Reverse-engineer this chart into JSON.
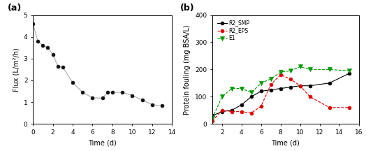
{
  "panel_a": {
    "label": "(a)",
    "x": [
      0,
      0.5,
      1,
      1.5,
      2,
      2.5,
      3,
      4,
      5,
      6,
      7,
      7.5,
      8,
      9,
      10,
      11,
      12,
      13
    ],
    "y": [
      4.6,
      3.8,
      3.6,
      3.5,
      3.2,
      2.65,
      2.6,
      1.9,
      1.45,
      1.2,
      1.18,
      1.45,
      1.45,
      1.45,
      1.3,
      1.1,
      0.88,
      0.83
    ],
    "xlabel": "Time (d)",
    "ylabel": "Flux (L/m²/h)",
    "xlim": [
      0,
      14
    ],
    "ylim": [
      0,
      5
    ],
    "xticks": [
      0,
      2,
      4,
      6,
      8,
      10,
      12,
      14
    ],
    "yticks": [
      0,
      1,
      2,
      3,
      4,
      5
    ],
    "line_color": "#aaaaaa",
    "marker_color": "#111111"
  },
  "panel_b": {
    "label": "(b)",
    "xlabel": "Time (d)",
    "ylabel": "Protein fouling (mg BSA/L)",
    "xlim": [
      1,
      16
    ],
    "ylim": [
      0,
      400
    ],
    "xticks": [
      2,
      4,
      6,
      8,
      10,
      12,
      14,
      16
    ],
    "yticks": [
      0,
      100,
      200,
      300,
      400
    ],
    "series": [
      {
        "name": "R2_SMP",
        "x": [
          1,
          2,
          3,
          4,
          5,
          6,
          7,
          8,
          9,
          10,
          11,
          13,
          15
        ],
        "y": [
          30,
          45,
          50,
          70,
          100,
          120,
          125,
          130,
          135,
          140,
          140,
          150,
          185
        ],
        "color": "#000000",
        "marker": "o",
        "linestyle": "-",
        "linewidth": 0.8
      },
      {
        "name": "R2_EPS",
        "x": [
          1,
          2,
          3,
          4,
          5,
          6,
          7,
          8,
          9,
          10,
          11,
          13,
          15
        ],
        "y": [
          10,
          50,
          45,
          45,
          40,
          65,
          145,
          180,
          165,
          140,
          100,
          60,
          60
        ],
        "color": "#dd0000",
        "marker": "o",
        "linestyle": "--",
        "linewidth": 0.8
      },
      {
        "name": "E1",
        "x": [
          1,
          2,
          3,
          4,
          5,
          6,
          7,
          8,
          9,
          10,
          11,
          13,
          15
        ],
        "y": [
          20,
          100,
          130,
          130,
          115,
          150,
          165,
          190,
          195,
          210,
          200,
          200,
          195
        ],
        "color": "#009900",
        "marker": "v",
        "linestyle": "--",
        "linewidth": 0.8
      }
    ]
  }
}
